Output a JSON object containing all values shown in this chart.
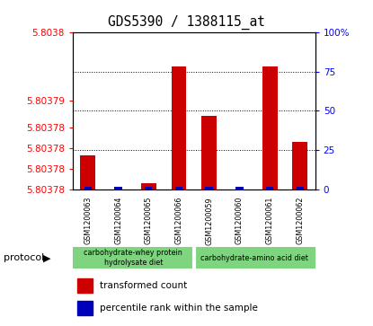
{
  "title": "GDS5390 / 1388115_at",
  "samples": [
    "GSM1200063",
    "GSM1200064",
    "GSM1200065",
    "GSM1200066",
    "GSM1200059",
    "GSM1200060",
    "GSM1200061",
    "GSM1200062"
  ],
  "transformed_count": [
    5.803782,
    5.8037758,
    5.8037778,
    5.803795,
    5.8037878,
    5.803773,
    5.803795,
    5.803784
  ],
  "percentile_rank": [
    1.5,
    1.5,
    1.5,
    1.5,
    1.5,
    1.5,
    1.5,
    1.5
  ],
  "y_min": 5.803777,
  "y_max": 5.8038,
  "left_tick_vals": [
    5.803777,
    5.80378,
    5.803783,
    5.803786,
    5.80379,
    5.8038
  ],
  "left_tick_labels": [
    "5.80378",
    "5.80378",
    "5.80378",
    "5.80378",
    "5.80379",
    "5.8038"
  ],
  "right_tick_pcts": [
    0,
    25,
    50,
    75,
    100
  ],
  "right_tick_labels": [
    "0",
    "25",
    "50",
    "75",
    "100%"
  ],
  "bar_color": "#CC0000",
  "percentile_color": "#0000BB",
  "bar_width": 0.5,
  "pct_bar_width": 0.25,
  "sample_area_color": "#C8C8C8",
  "protocol_group1_label": "carbohydrate-whey protein\nhydrolysate diet",
  "protocol_group2_label": "carbohydrate-amino acid diet",
  "protocol_color": "#7FD47F",
  "plot_bg": "white",
  "grid_color": "black",
  "grid_style": ":",
  "grid_lw": 0.7
}
